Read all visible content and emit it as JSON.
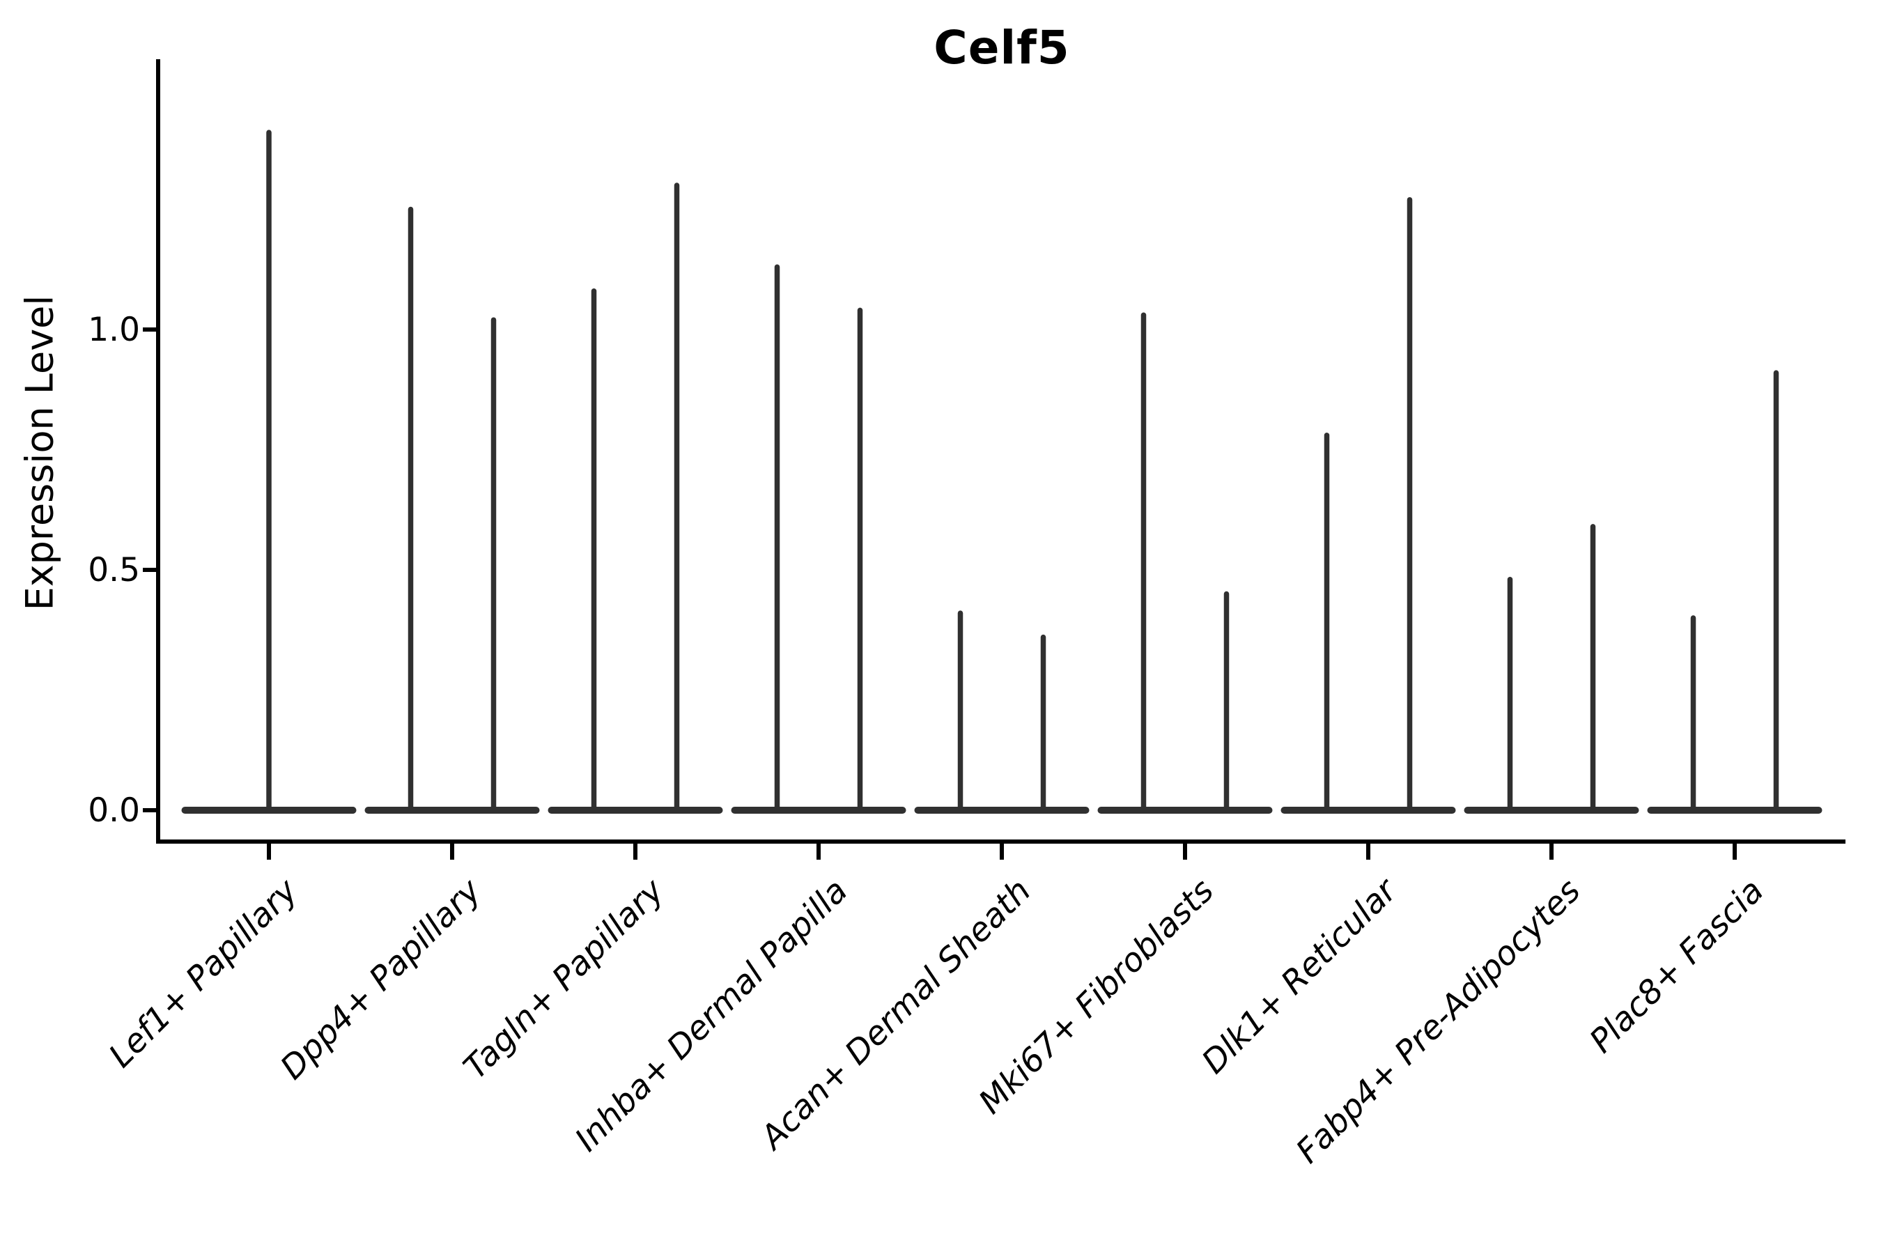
{
  "figure": {
    "title": "Celf5",
    "ylabel": "Expression Level"
  },
  "chart_data": {
    "type": "violin",
    "title": "Celf5",
    "xlabel": "",
    "ylabel": "Expression Level",
    "background": "#ffffff",
    "grid": false,
    "legend": "none",
    "violin_color": "#303030",
    "axis_color": "#000000",
    "ylim": [
      -0.065,
      1.56
    ],
    "yticks": [
      0.0,
      0.5,
      1.0
    ],
    "ytick_labels": [
      "0.0",
      "0.5",
      "1.0"
    ],
    "categories": [
      "Lef1+ Papillary",
      "Dpp4+ Papillary",
      "Tagln+ Papillary",
      "Inhba+ Dermal Papilla",
      "Acan+ Dermal Sheath",
      "Mki67+ Fibroblasts",
      "Dlk1+ Reticular",
      "Fabp4+ Pre-Adipocytes",
      "Plac8+ Fascia"
    ],
    "series": [
      {
        "category": "Lef1+ Papillary",
        "violins": [
          {
            "position": "center",
            "max_expression": 1.41
          }
        ]
      },
      {
        "category": "Dpp4+ Papillary",
        "violins": [
          {
            "position": "left",
            "max_expression": 1.25
          },
          {
            "position": "right",
            "max_expression": 1.02
          }
        ]
      },
      {
        "category": "Tagln+ Papillary",
        "violins": [
          {
            "position": "left",
            "max_expression": 1.08
          },
          {
            "position": "right",
            "max_expression": 1.3
          }
        ]
      },
      {
        "category": "Inhba+ Dermal Papilla",
        "violins": [
          {
            "position": "left",
            "max_expression": 1.13
          },
          {
            "position": "right",
            "max_expression": 1.04
          }
        ]
      },
      {
        "category": "Acan+ Dermal Sheath",
        "violins": [
          {
            "position": "left",
            "max_expression": 0.41
          },
          {
            "position": "right",
            "max_expression": 0.36
          }
        ]
      },
      {
        "category": "Mki67+ Fibroblasts",
        "violins": [
          {
            "position": "left",
            "max_expression": 1.03
          },
          {
            "position": "right",
            "max_expression": 0.45
          }
        ]
      },
      {
        "category": "Dlk1+ Reticular",
        "violins": [
          {
            "position": "left",
            "max_expression": 0.78
          },
          {
            "position": "right",
            "max_expression": 1.27
          }
        ]
      },
      {
        "category": "Fabp4+ Pre-Adipocytes",
        "violins": [
          {
            "position": "left",
            "max_expression": 0.48
          },
          {
            "position": "right",
            "max_expression": 0.59
          }
        ]
      },
      {
        "category": "Plac8+ Fascia",
        "violins": [
          {
            "position": "left",
            "max_expression": 0.4
          },
          {
            "position": "right",
            "max_expression": 0.91
          }
        ]
      }
    ],
    "violin_shape_note": "each violin is flattened at 0 (wide flat base) with a thin vertical spike up to its maximum expression value"
  }
}
